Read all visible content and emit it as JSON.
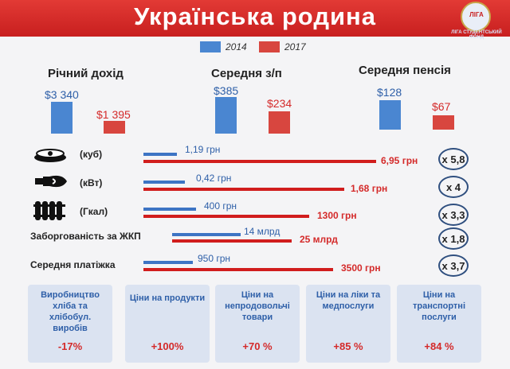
{
  "header": {
    "title": "Українська родина",
    "logo_text": "ЛІГА СТУДЕНТСЬКИЙ ФОНД",
    "logo_abbr": "ЛІГА",
    "bg_color": "#d3231f"
  },
  "legend": [
    {
      "label": "2014",
      "color": "#4a86d1"
    },
    {
      "label": "2017",
      "color": "#d8463f"
    }
  ],
  "income_groups": [
    {
      "label": "Річний дохід",
      "v2014": "$3 340",
      "v2017": "$1 395"
    },
    {
      "label": "Середня з/п",
      "v2014": "$385",
      "v2017": "$234"
    },
    {
      "label": "Середня пенсія",
      "v2014": "$128",
      "v2017": "$67"
    }
  ],
  "price_rows": [
    {
      "icon": "gas-burner-icon",
      "label": "(куб)",
      "v2014": "1,19 грн",
      "v2017": "6,95 грн",
      "multiplier": "x 5,8"
    },
    {
      "icon": "light-bulb-icon",
      "label": "(кВт)",
      "v2014": "0,42 грн",
      "v2017": "1,68 грн",
      "multiplier": "x 4"
    },
    {
      "icon": "radiator-icon",
      "label": "(Гкал)",
      "v2014": "400 грн",
      "v2017": "1300 грн",
      "multiplier": "x 3,3"
    },
    {
      "icon": "",
      "label": "Заборгованість за ЖКП",
      "v2014": "14 млрд",
      "v2017": "25 млрд",
      "multiplier": "x 1,8"
    },
    {
      "icon": "",
      "label": "Середня платіжка",
      "v2014": "950 грн",
      "v2017": "3500 грн",
      "multiplier": "x 3,7"
    }
  ],
  "cards": [
    {
      "label": "Виробництво хліба та хлібобул. виробів",
      "value": "-17%"
    },
    {
      "label": "Ціни на продукти",
      "value": "+100%"
    },
    {
      "label": "Ціни на непродовольчі товари",
      "value": "+70 %"
    },
    {
      "label": "Ціни на ліки та медпослуги",
      "value": "+85 %"
    },
    {
      "label": "Ціни на транспортні послуги",
      "value": "+84 %"
    }
  ]
}
